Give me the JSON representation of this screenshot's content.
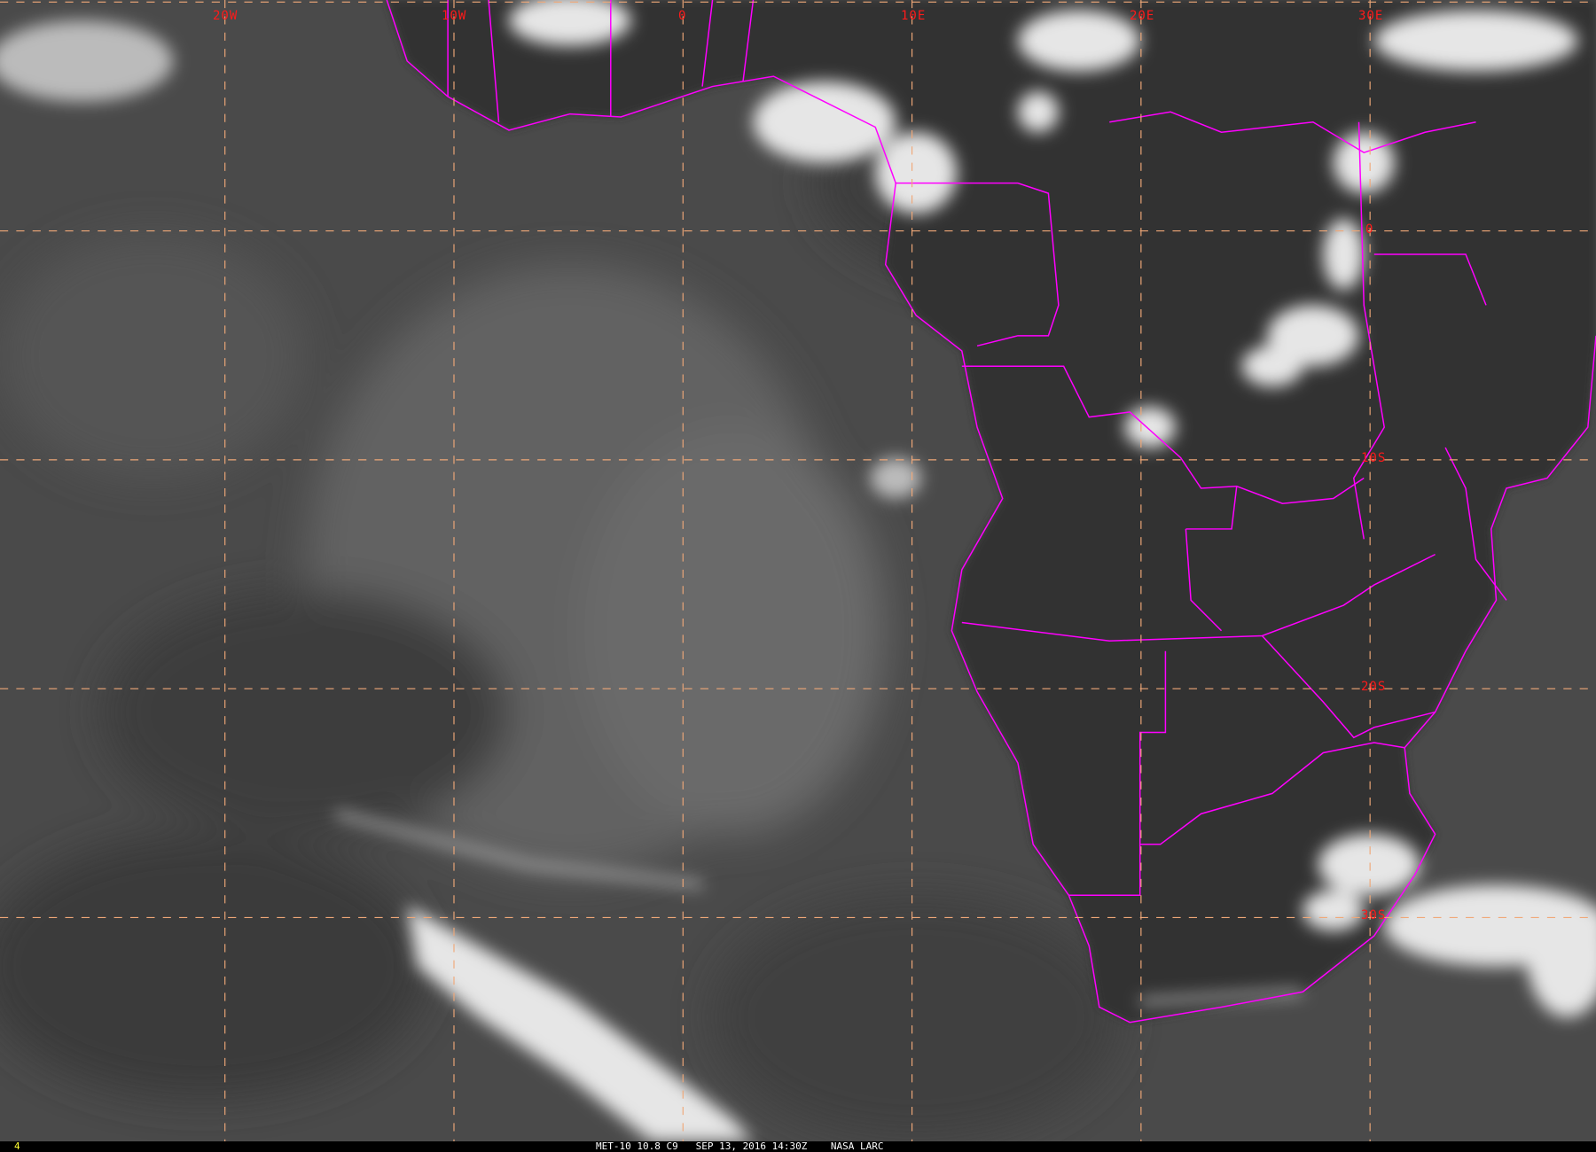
{
  "image": {
    "lon_labels": [
      "20W",
      "10W",
      "0",
      "10E",
      "20E",
      "30E"
    ],
    "lat_labels": [
      "0",
      "10S",
      "20S",
      "30S"
    ],
    "colors": {
      "grid": "#f0a878",
      "borders": "#ff00ff",
      "labels": "#ff1a1a",
      "frame_number": "#ffff33"
    }
  },
  "footer": {
    "frame_number": "4",
    "caption": "MET-10 10.8 C9   SEP 13, 2016 14:30Z    NASA LARC"
  }
}
